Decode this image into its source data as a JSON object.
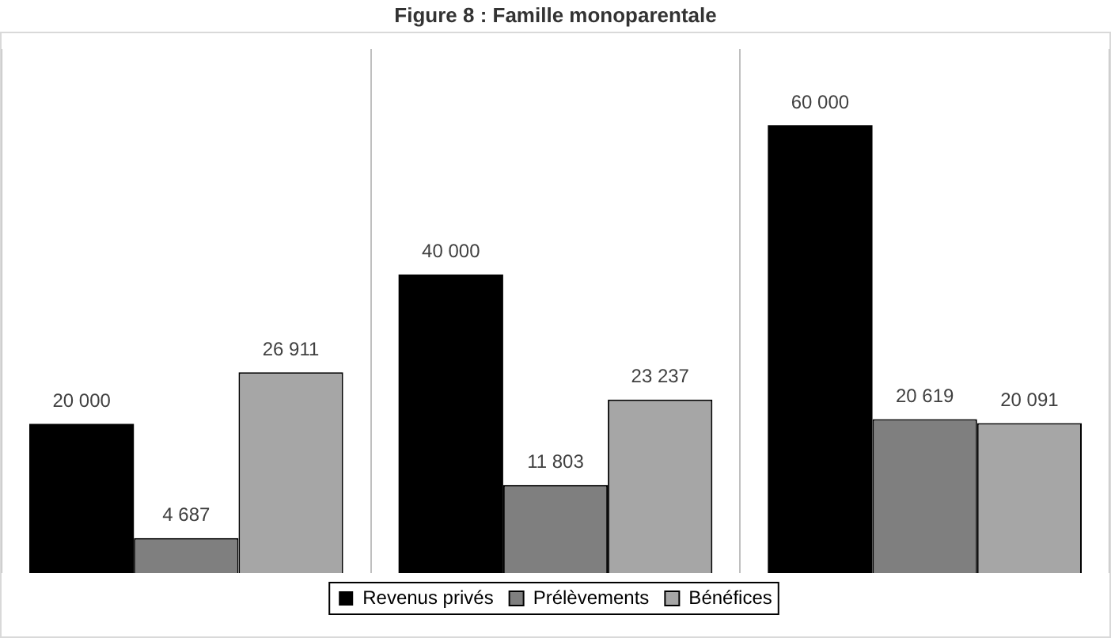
{
  "chart_data": {
    "type": "bar",
    "title": "Figure 8 : Famille monoparentale",
    "categories": [
      null,
      null,
      null
    ],
    "series": [
      {
        "name": "Revenus privés",
        "color": "#000000",
        "values": [
          20000,
          40000,
          60000
        ]
      },
      {
        "name": "Prélèvements",
        "color": "#7f7f7f",
        "values": [
          4687,
          11803,
          20619
        ]
      },
      {
        "name": "Bénéfices",
        "color": "#a6a6a6",
        "values": [
          26911,
          23237,
          20091
        ]
      }
    ],
    "tick_labels": false,
    "data_labels": true,
    "grid": "x",
    "legend": "bottom"
  }
}
